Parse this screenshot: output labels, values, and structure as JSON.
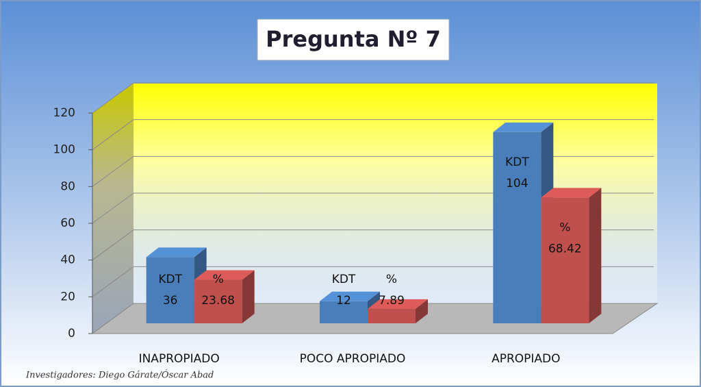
{
  "chart_data": {
    "type": "bar3d",
    "title": "Pregunta Nº 7",
    "categories": [
      "INAPROPIADO",
      "POCO APROPIADO",
      "APROPIADO"
    ],
    "series": [
      {
        "name": "KDT",
        "color": "#4a7ebb",
        "values": [
          36,
          12,
          104
        ]
      },
      {
        "name": "%",
        "color": "#c0504d",
        "values": [
          23.68,
          7.89,
          68.42
        ]
      }
    ],
    "ylim": [
      0,
      120
    ],
    "yticks": [
      0,
      20,
      40,
      60,
      80,
      100,
      120
    ],
    "grid": true,
    "footer": "Investigadores: Diego Gárate/Óscar Abad"
  }
}
